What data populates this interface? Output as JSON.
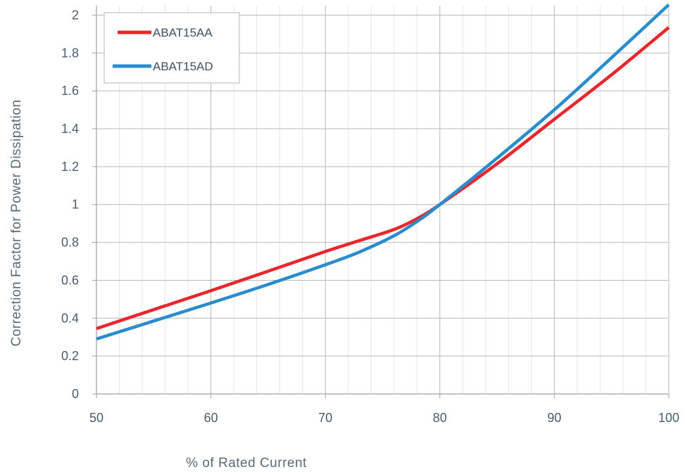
{
  "chart_data": {
    "type": "line",
    "title": "",
    "xlabel": "% of Rated Current",
    "ylabel": "Correction Factor for Power Dissipation",
    "xlim": [
      50,
      100
    ],
    "ylim": [
      0,
      2.05
    ],
    "xticks": [
      50,
      60,
      70,
      80,
      90,
      100
    ],
    "xtick_labels": [
      "50",
      "60",
      "70",
      "80",
      "90",
      "100"
    ],
    "yticks": [
      0,
      0.2,
      0.4,
      0.6,
      0.8,
      1,
      1.2,
      1.4,
      1.6,
      1.8,
      2
    ],
    "ytick_labels": [
      "0",
      "0.2",
      "0.4",
      "0.6",
      "0.8",
      "1",
      "1.2",
      "1.4",
      "1.6",
      "1.8",
      "2"
    ],
    "grid": true,
    "legend_position": "top-left",
    "series": [
      {
        "name": "ABAT15AA",
        "color": "#e8262c",
        "x": [
          50,
          55,
          60,
          65,
          70,
          73,
          76,
          78,
          80,
          85,
          90,
          95,
          100
        ],
        "y": [
          0.345,
          0.445,
          0.545,
          0.648,
          0.752,
          0.81,
          0.868,
          0.925,
          1.0,
          1.215,
          1.45,
          1.685,
          1.935
        ]
      },
      {
        "name": "ABAT15AD",
        "color": "#2a8ccc",
        "x": [
          50,
          55,
          60,
          65,
          70,
          73,
          76,
          78,
          80,
          85,
          90,
          95,
          100
        ],
        "y": [
          0.29,
          0.385,
          0.48,
          0.578,
          0.682,
          0.75,
          0.835,
          0.91,
          1.0,
          1.245,
          1.5,
          1.775,
          2.055
        ]
      }
    ]
  }
}
